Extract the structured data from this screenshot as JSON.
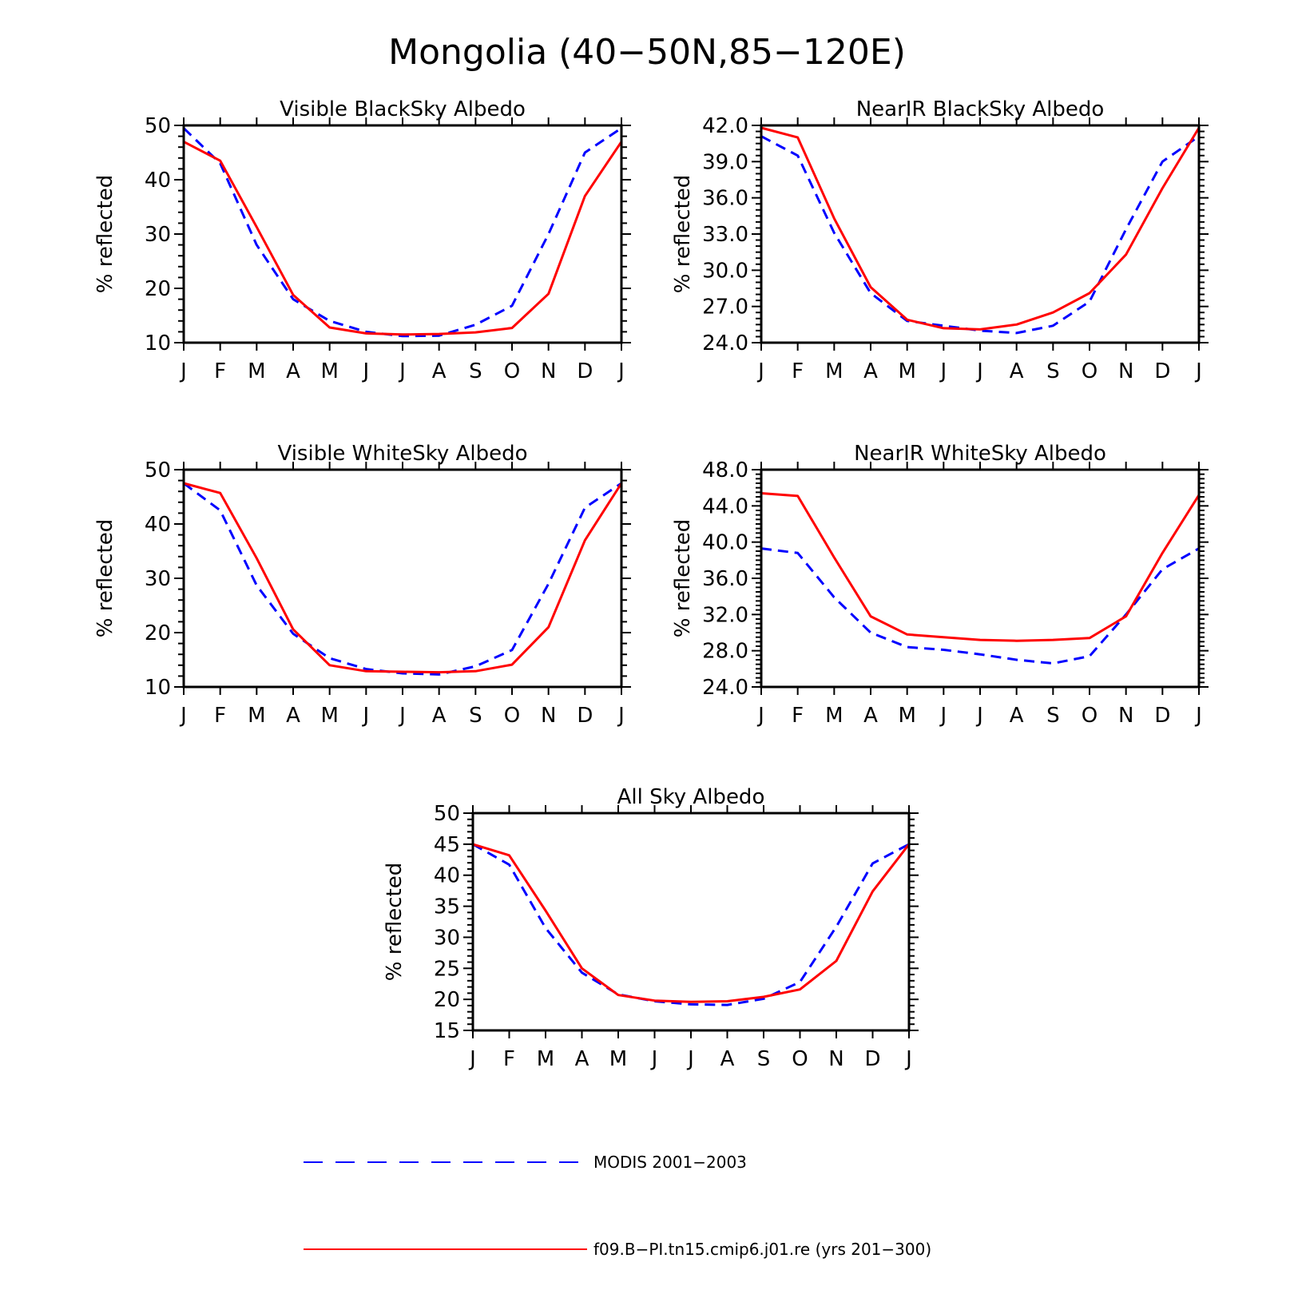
{
  "figure": {
    "title": "Mongolia (40−50N,85−120E)"
  },
  "legend": [
    {
      "label": "MODIS 2001−2003",
      "color": "#0000ff",
      "style": "dashed"
    },
    {
      "label": "f09.B−PI.tn15.cmip6.j01.re (yrs 201−300)",
      "color": "#ff0000",
      "style": "solid"
    }
  ],
  "chart_data": [
    {
      "type": "line",
      "title": "Visible BlackSky Albedo",
      "ylabel": "% reflected",
      "xlabel": "",
      "categories": [
        "J",
        "F",
        "M",
        "A",
        "M",
        "J",
        "J",
        "A",
        "S",
        "O",
        "N",
        "D",
        "J"
      ],
      "ylim": [
        10,
        50
      ],
      "yticks": [
        "10",
        "20",
        "30",
        "40",
        "50"
      ],
      "yminor": 5,
      "series": [
        {
          "name": "MODIS 2001−2003",
          "color": "#0000ff",
          "dashed": true,
          "values": [
            49.5,
            43.0,
            28.0,
            18.0,
            14.0,
            12.0,
            11.2,
            11.3,
            13.3,
            16.8,
            30.0,
            45.0,
            49.5
          ]
        },
        {
          "name": "f09.B−PI.tn15.cmip6.j01.re (yrs 201−300)",
          "color": "#ff0000",
          "dashed": false,
          "values": [
            47.0,
            43.5,
            31.3,
            18.8,
            12.8,
            11.7,
            11.5,
            11.6,
            11.9,
            12.7,
            19.0,
            37.0,
            47.0
          ]
        }
      ]
    },
    {
      "type": "line",
      "title": "NearIR BlackSky Albedo",
      "ylabel": "% reflected",
      "xlabel": "",
      "categories": [
        "J",
        "F",
        "M",
        "A",
        "M",
        "J",
        "J",
        "A",
        "S",
        "O",
        "N",
        "D",
        "J"
      ],
      "ylim": [
        24,
        42
      ],
      "yticks": [
        "24.0",
        "27.0",
        "30.0",
        "33.0",
        "36.0",
        "39.0",
        "42.0"
      ],
      "yminor": 6,
      "series": [
        {
          "name": "MODIS 2001−2003",
          "color": "#0000ff",
          "dashed": true,
          "values": [
            41.1,
            39.5,
            33.1,
            28.1,
            25.8,
            25.4,
            25.0,
            24.8,
            25.4,
            27.4,
            33.4,
            39.0,
            41.1
          ]
        },
        {
          "name": "f09.B−PI.tn15.cmip6.j01.re (yrs 201−300)",
          "color": "#ff0000",
          "dashed": false,
          "values": [
            41.8,
            41.0,
            34.3,
            28.6,
            25.9,
            25.2,
            25.1,
            25.5,
            26.5,
            28.1,
            31.3,
            36.8,
            41.8
          ]
        }
      ]
    },
    {
      "type": "line",
      "title": "Visible WhiteSky Albedo",
      "ylabel": "% reflected",
      "xlabel": "",
      "categories": [
        "J",
        "F",
        "M",
        "A",
        "M",
        "J",
        "J",
        "A",
        "S",
        "O",
        "N",
        "D",
        "J"
      ],
      "ylim": [
        10,
        50
      ],
      "yticks": [
        "10",
        "20",
        "30",
        "40",
        "50"
      ],
      "yminor": 5,
      "series": [
        {
          "name": "MODIS 2001−2003",
          "color": "#0000ff",
          "dashed": true,
          "values": [
            47.5,
            42.5,
            28.7,
            19.8,
            15.3,
            13.3,
            12.5,
            12.3,
            13.8,
            16.8,
            29.0,
            43.0,
            47.5
          ]
        },
        {
          "name": "f09.B−PI.tn15.cmip6.j01.re (yrs 201−300)",
          "color": "#ff0000",
          "dashed": false,
          "values": [
            47.5,
            45.7,
            33.7,
            20.6,
            14.0,
            12.9,
            12.8,
            12.7,
            12.9,
            14.1,
            21.0,
            37.0,
            47.5
          ]
        }
      ]
    },
    {
      "type": "line",
      "title": "NearIR WhiteSky Albedo",
      "ylabel": "% reflected",
      "xlabel": "",
      "categories": [
        "J",
        "F",
        "M",
        "A",
        "M",
        "J",
        "J",
        "A",
        "S",
        "O",
        "N",
        "D",
        "J"
      ],
      "ylim": [
        24,
        48
      ],
      "yticks": [
        "24.0",
        "28.0",
        "32.0",
        "36.0",
        "40.0",
        "44.0",
        "48.0"
      ],
      "yminor": 8,
      "series": [
        {
          "name": "MODIS 2001−2003",
          "color": "#0000ff",
          "dashed": true,
          "values": [
            39.3,
            38.8,
            33.9,
            30.0,
            28.4,
            28.1,
            27.6,
            27.0,
            26.6,
            27.4,
            32.0,
            37.0,
            39.3
          ]
        },
        {
          "name": "f09.B−PI.tn15.cmip6.j01.re (yrs 201−300)",
          "color": "#ff0000",
          "dashed": false,
          "values": [
            45.4,
            45.1,
            38.3,
            31.8,
            29.8,
            29.5,
            29.2,
            29.1,
            29.2,
            29.4,
            31.8,
            38.8,
            45.2
          ]
        }
      ]
    },
    {
      "type": "line",
      "title": "All Sky Albedo",
      "ylabel": "% reflected",
      "xlabel": "",
      "categories": [
        "J",
        "F",
        "M",
        "A",
        "M",
        "J",
        "J",
        "A",
        "S",
        "O",
        "N",
        "D",
        "J"
      ],
      "ylim": [
        15,
        50
      ],
      "yticks": [
        "15",
        "20",
        "25",
        "30",
        "35",
        "40",
        "45",
        "50"
      ],
      "yminor": 5,
      "series": [
        {
          "name": "MODIS 2001−2003",
          "color": "#0000ff",
          "dashed": true,
          "values": [
            45.0,
            41.7,
            31.5,
            24.3,
            20.8,
            19.7,
            19.2,
            19.1,
            20.1,
            22.8,
            31.7,
            41.9,
            45.0
          ]
        },
        {
          "name": "f09.B−PI.tn15.cmip6.j01.re (yrs 201−300)",
          "color": "#ff0000",
          "dashed": false,
          "values": [
            45.0,
            43.2,
            34.3,
            25.0,
            20.7,
            19.8,
            19.6,
            19.7,
            20.4,
            21.6,
            26.2,
            37.4,
            45.0
          ]
        }
      ]
    }
  ]
}
